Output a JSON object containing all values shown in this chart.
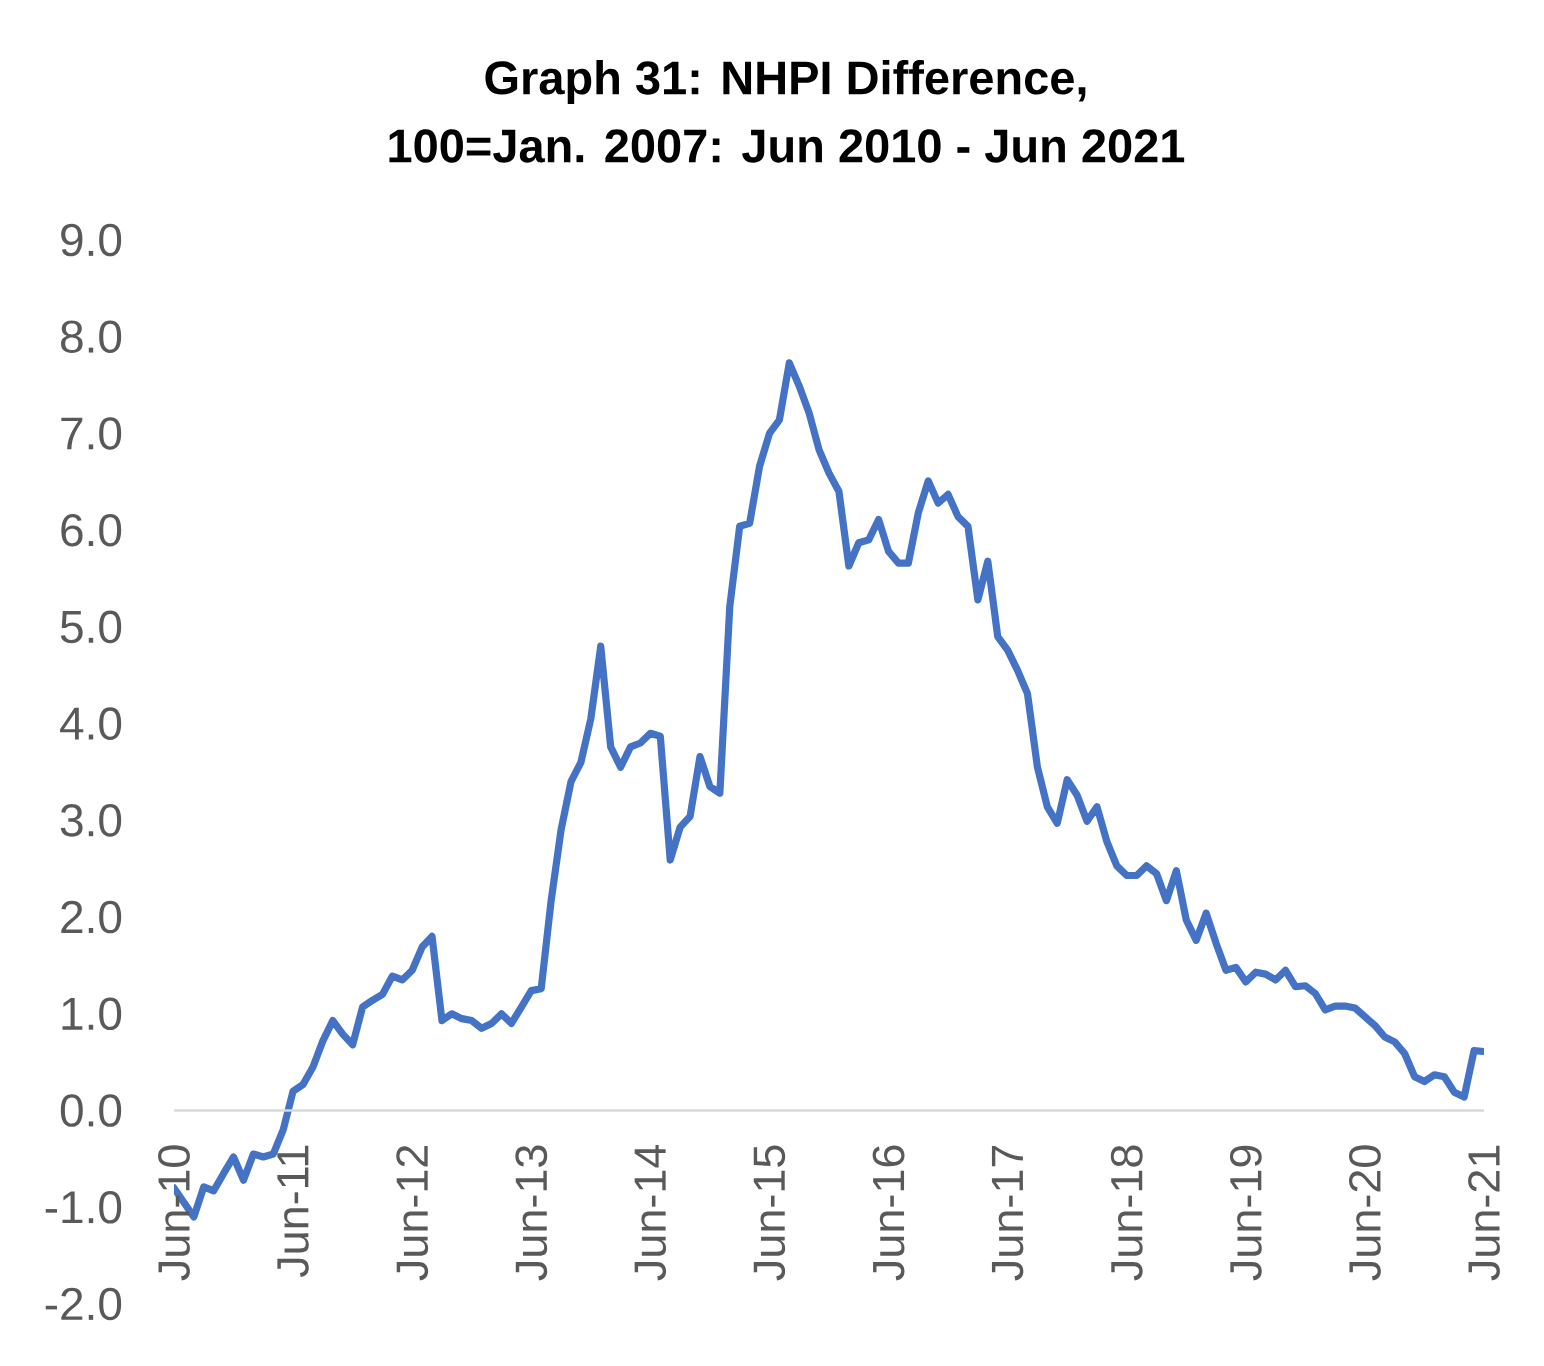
{
  "chart_data": {
    "type": "line",
    "title": "Graph 31: NHPI Difference,",
    "subtitle": "100=Jan. 2007: Jun 2010 - Jun 2021",
    "x": [
      "2010-06",
      "2010-07",
      "2010-08",
      "2010-09",
      "2010-10",
      "2010-11",
      "2010-12",
      "2011-01",
      "2011-02",
      "2011-03",
      "2011-04",
      "2011-05",
      "2011-06",
      "2011-07",
      "2011-08",
      "2011-09",
      "2011-10",
      "2011-11",
      "2011-12",
      "2012-01",
      "2012-02",
      "2012-03",
      "2012-04",
      "2012-05",
      "2012-06",
      "2012-07",
      "2012-08",
      "2012-09",
      "2012-10",
      "2012-11",
      "2012-12",
      "2013-01",
      "2013-02",
      "2013-03",
      "2013-04",
      "2013-05",
      "2013-06",
      "2013-07",
      "2013-08",
      "2013-09",
      "2013-10",
      "2013-11",
      "2013-12",
      "2014-01",
      "2014-02",
      "2014-03",
      "2014-04",
      "2014-05",
      "2014-06",
      "2014-07",
      "2014-08",
      "2014-09",
      "2014-10",
      "2014-11",
      "2014-12",
      "2015-01",
      "2015-02",
      "2015-03",
      "2015-04",
      "2015-05",
      "2015-06",
      "2015-07",
      "2015-08",
      "2015-09",
      "2015-10",
      "2015-11",
      "2015-12",
      "2016-01",
      "2016-02",
      "2016-03",
      "2016-04",
      "2016-05",
      "2016-06",
      "2016-07",
      "2016-08",
      "2016-09",
      "2016-10",
      "2016-11",
      "2016-12",
      "2017-01",
      "2017-02",
      "2017-03",
      "2017-04",
      "2017-05",
      "2017-06",
      "2017-07",
      "2017-08",
      "2017-09",
      "2017-10",
      "2017-11",
      "2017-12",
      "2018-01",
      "2018-02",
      "2018-03",
      "2018-04",
      "2018-05",
      "2018-06",
      "2018-07",
      "2018-08",
      "2018-09",
      "2018-10",
      "2018-11",
      "2018-12",
      "2019-01",
      "2019-02",
      "2019-03",
      "2019-04",
      "2019-05",
      "2019-06",
      "2019-07",
      "2019-08",
      "2019-09",
      "2019-10",
      "2019-11",
      "2019-12",
      "2020-01",
      "2020-02",
      "2020-03",
      "2020-04",
      "2020-05",
      "2020-06",
      "2020-07",
      "2020-08",
      "2020-09",
      "2020-10",
      "2020-11",
      "2020-12",
      "2021-01",
      "2021-02",
      "2021-03",
      "2021-04",
      "2021-05",
      "2021-06"
    ],
    "series": [
      {
        "color": "#4472c4",
        "values": [
          -0.8,
          -0.95,
          -1.1,
          -0.79,
          -0.83,
          -0.65,
          -0.48,
          -0.72,
          -0.45,
          -0.48,
          -0.45,
          -0.2,
          0.2,
          0.27,
          0.45,
          0.72,
          0.93,
          0.79,
          0.68,
          1.07,
          1.14,
          1.2,
          1.39,
          1.35,
          1.45,
          1.69,
          1.8,
          0.93,
          1.0,
          0.95,
          0.93,
          0.85,
          0.9,
          1.0,
          0.9,
          1.07,
          1.24,
          1.26,
          2.17,
          2.9,
          3.4,
          3.6,
          4.05,
          4.8,
          3.76,
          3.55,
          3.76,
          3.8,
          3.9,
          3.87,
          2.59,
          2.93,
          3.04,
          3.66,
          3.35,
          3.28,
          5.21,
          6.04,
          6.07,
          6.66,
          7.0,
          7.14,
          7.73,
          7.49,
          7.21,
          6.83,
          6.59,
          6.4,
          5.63,
          5.87,
          5.9,
          6.11,
          5.78,
          5.66,
          5.66,
          6.18,
          6.51,
          6.28,
          6.37,
          6.14,
          6.04,
          5.28,
          5.68,
          4.9,
          4.76,
          4.55,
          4.31,
          3.55,
          3.14,
          2.97,
          3.42,
          3.26,
          2.99,
          3.14,
          2.78,
          2.53,
          2.43,
          2.43,
          2.53,
          2.45,
          2.17,
          2.48,
          1.97,
          1.76,
          2.04,
          1.73,
          1.45,
          1.48,
          1.33,
          1.43,
          1.41,
          1.35,
          1.45,
          1.28,
          1.29,
          1.21,
          1.04,
          1.08,
          1.08,
          1.06,
          0.97,
          0.88,
          0.76,
          0.71,
          0.59,
          0.35,
          0.3,
          0.37,
          0.35,
          0.19,
          0.14,
          0.62,
          0.61
        ]
      }
    ],
    "xlim": [
      "2010-06",
      "2021-06"
    ],
    "xticks": [
      {
        "value": "2010-06",
        "label": "Jun-10"
      },
      {
        "value": "2011-06",
        "label": "Jun-11"
      },
      {
        "value": "2012-06",
        "label": "Jun-12"
      },
      {
        "value": "2013-06",
        "label": "Jun-13"
      },
      {
        "value": "2014-06",
        "label": "Jun-14"
      },
      {
        "value": "2015-06",
        "label": "Jun-15"
      },
      {
        "value": "2016-06",
        "label": "Jun-16"
      },
      {
        "value": "2017-06",
        "label": "Jun-17"
      },
      {
        "value": "2018-06",
        "label": "Jun-18"
      },
      {
        "value": "2019-06",
        "label": "Jun-19"
      },
      {
        "value": "2020-06",
        "label": "Jun-20"
      },
      {
        "value": "2021-06",
        "label": "Jun-21"
      }
    ],
    "ylim": [
      -2,
      9
    ],
    "yticks": [
      {
        "value": -2,
        "label": "-2.0"
      },
      {
        "value": -1,
        "label": "-1.0"
      },
      {
        "value": 0,
        "label": "0.0"
      },
      {
        "value": 1,
        "label": "1.0"
      },
      {
        "value": 2,
        "label": "2.0"
      },
      {
        "value": 3,
        "label": "3.0"
      },
      {
        "value": 4,
        "label": "4.0"
      },
      {
        "value": 5,
        "label": "5.0"
      },
      {
        "value": 6,
        "label": "6.0"
      },
      {
        "value": 7,
        "label": "7.0"
      },
      {
        "value": 8,
        "label": "8.0"
      },
      {
        "value": 9,
        "label": "9.0"
      }
    ],
    "line_style": "solid"
  }
}
